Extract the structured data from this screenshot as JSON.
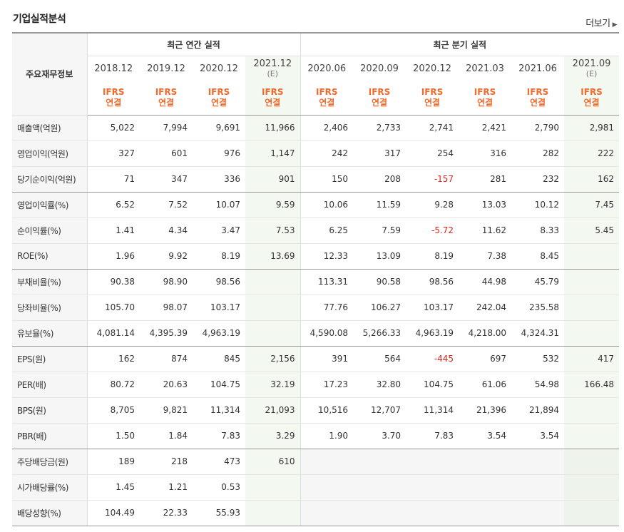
{
  "title": "기업실적분석",
  "more_label": "더보기",
  "header": {
    "label_col": "주요재무정보",
    "annual_group": "최근 연간 실적",
    "quarter_group": "최근 분기 실적",
    "periods": [
      {
        "period": "2018.12",
        "est": ""
      },
      {
        "period": "2019.12",
        "est": ""
      },
      {
        "period": "2020.12",
        "est": ""
      },
      {
        "period": "2021.12",
        "est": "(E)"
      },
      {
        "period": "2020.06",
        "est": ""
      },
      {
        "period": "2020.09",
        "est": ""
      },
      {
        "period": "2020.12",
        "est": ""
      },
      {
        "period": "2021.03",
        "est": ""
      },
      {
        "period": "2021.06",
        "est": ""
      },
      {
        "period": "2021.09",
        "est": "(E)"
      }
    ],
    "basis_line1": "IFRS",
    "basis_line2": "연결"
  },
  "rows": [
    {
      "label": "매출액(억원)",
      "values": [
        "5,022",
        "7,994",
        "9,691",
        "11,966",
        "2,406",
        "2,733",
        "2,741",
        "2,421",
        "2,790",
        "2,981"
      ]
    },
    {
      "label": "영업이익(억원)",
      "values": [
        "327",
        "601",
        "976",
        "1,147",
        "242",
        "317",
        "254",
        "316",
        "282",
        "222"
      ]
    },
    {
      "label": "당기순이익(억원)",
      "values": [
        "71",
        "347",
        "336",
        "901",
        "150",
        "208",
        "-157",
        "281",
        "232",
        "162"
      ]
    },
    {
      "label": "영업이익률(%)",
      "values": [
        "6.52",
        "7.52",
        "10.07",
        "9.59",
        "10.06",
        "11.59",
        "9.28",
        "13.03",
        "10.12",
        "7.45"
      ]
    },
    {
      "label": "순이익률(%)",
      "values": [
        "1.41",
        "4.34",
        "3.47",
        "7.53",
        "6.25",
        "7.59",
        "-5.72",
        "11.62",
        "8.33",
        "5.45"
      ]
    },
    {
      "label": "ROE(%)",
      "values": [
        "1.96",
        "9.92",
        "8.19",
        "13.69",
        "12.33",
        "13.09",
        "8.19",
        "7.38",
        "8.45",
        ""
      ]
    },
    {
      "label": "부채비율(%)",
      "values": [
        "90.38",
        "98.90",
        "98.56",
        "",
        "113.31",
        "90.58",
        "98.56",
        "44.98",
        "45.79",
        ""
      ]
    },
    {
      "label": "당좌비율(%)",
      "values": [
        "105.70",
        "98.07",
        "103.17",
        "",
        "77.76",
        "106.27",
        "103.17",
        "242.04",
        "235.58",
        ""
      ]
    },
    {
      "label": "유보율(%)",
      "values": [
        "4,081.14",
        "4,395.39",
        "4,963.19",
        "",
        "4,590.08",
        "5,266.33",
        "4,963.19",
        "4,218.00",
        "4,324.31",
        ""
      ]
    },
    {
      "label": "EPS(원)",
      "values": [
        "162",
        "874",
        "845",
        "2,156",
        "391",
        "564",
        "-445",
        "697",
        "532",
        "417"
      ]
    },
    {
      "label": "PER(배)",
      "values": [
        "80.72",
        "20.63",
        "104.75",
        "32.19",
        "17.23",
        "32.80",
        "104.75",
        "61.06",
        "54.98",
        "166.48"
      ]
    },
    {
      "label": "BPS(원)",
      "values": [
        "8,705",
        "9,821",
        "11,314",
        "21,093",
        "10,516",
        "12,707",
        "11,314",
        "21,396",
        "21,894",
        ""
      ]
    },
    {
      "label": "PBR(배)",
      "values": [
        "1.50",
        "1.84",
        "7.83",
        "3.29",
        "1.90",
        "3.70",
        "7.83",
        "3.54",
        "3.54",
        ""
      ]
    },
    {
      "label": "주당배당금(원)",
      "values": [
        "189",
        "218",
        "473",
        "610",
        "",
        "",
        "",
        "",
        "",
        ""
      ]
    },
    {
      "label": "시가배당률(%)",
      "values": [
        "1.45",
        "1.21",
        "0.53",
        "",
        "",
        "",
        "",
        "",
        "",
        ""
      ]
    },
    {
      "label": "배당성향(%)",
      "values": [
        "104.49",
        "22.33",
        "55.93",
        "",
        "",
        "",
        "",
        "",
        "",
        ""
      ]
    }
  ]
}
